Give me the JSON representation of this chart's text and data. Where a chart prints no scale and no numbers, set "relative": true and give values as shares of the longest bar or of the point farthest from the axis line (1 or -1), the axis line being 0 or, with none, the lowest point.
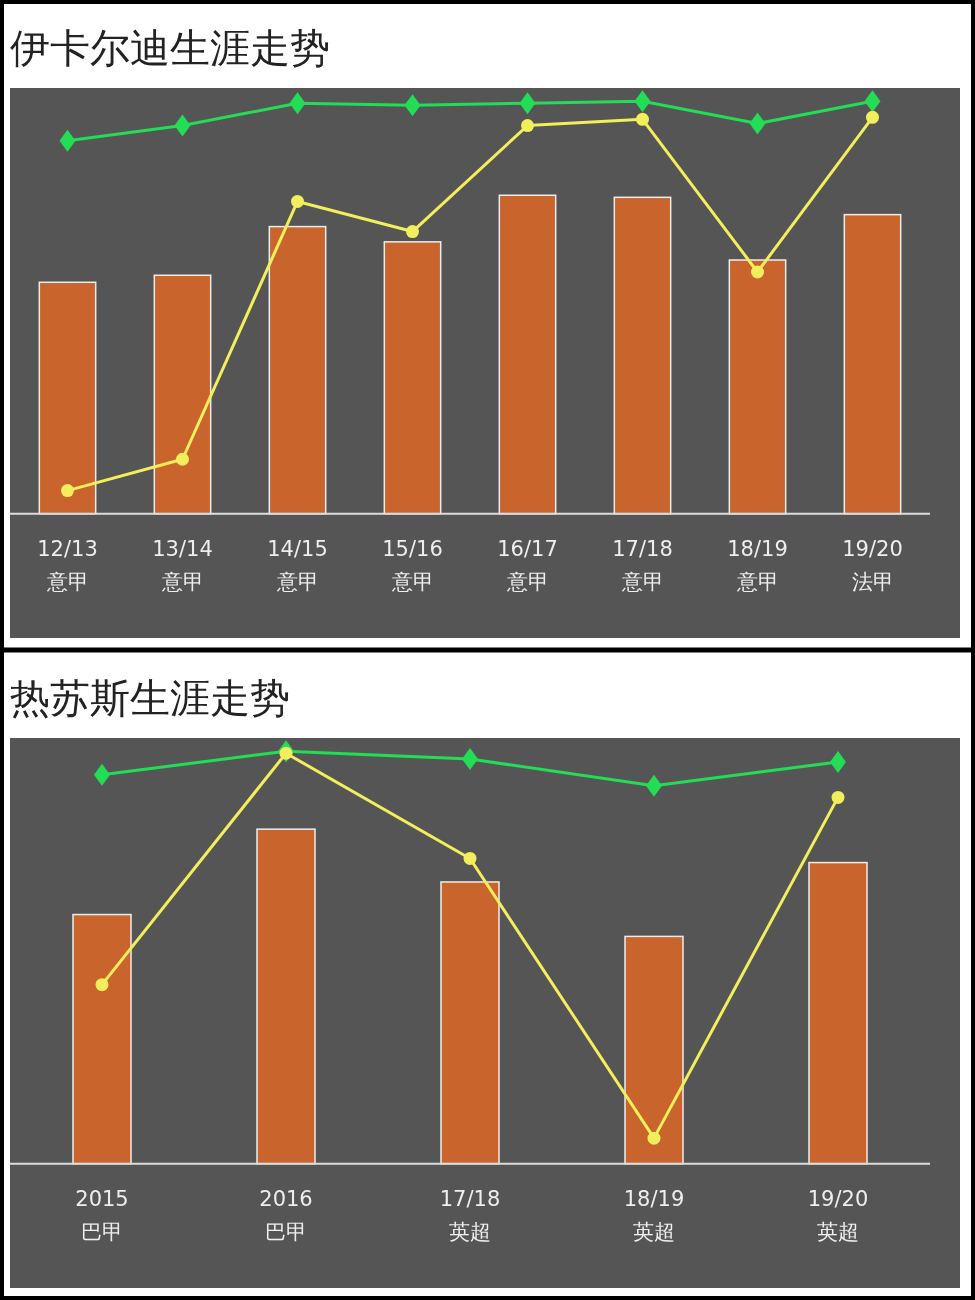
{
  "chart_data": [
    {
      "type": "bar",
      "title": "伊卡尔迪生涯走势",
      "relative": true,
      "categories": [
        "12/13\n意甲",
        "13/14\n意甲",
        "14/15\n意甲",
        "15/16\n意甲",
        "16/17\n意甲",
        "17/18\n意甲",
        "18/19\n意甲",
        "19/20\n法甲"
      ],
      "series": [
        {
          "color": "#c8642c",
          "values": [
            0.561,
            0.578,
            0.696,
            0.659,
            0.772,
            0.767,
            0.615,
            0.725
          ]
        },
        {
          "type": "line",
          "color": "#22dd55",
          "marker": "diamond",
          "values": [
            0.904,
            0.941,
            0.995,
            0.99,
            0.995,
            1,
            0.946,
            1
          ]
        },
        {
          "type": "line",
          "color": "#f2ee5c",
          "marker": "circle",
          "values": [
            0.056,
            0.132,
            0.757,
            0.684,
            0.941,
            0.956,
            0.586,
            0.961
          ]
        }
      ]
    },
    {
      "type": "bar",
      "title": "热苏斯生涯走势",
      "relative": true,
      "categories": [
        "2015\n巴甲",
        "2016\n巴甲",
        "17/18\n英超",
        "18/19\n英超",
        "19/20\n英超"
      ],
      "series": [
        {
          "color": "#c8642c",
          "values": [
            0.604,
            0.811,
            0.683,
            0.551,
            0.73
          ]
        },
        {
          "type": "line",
          "color": "#22dd55",
          "marker": "diamond",
          "values": [
            0.943,
            1,
            0.981,
            0.916,
            0.974
          ]
        },
        {
          "type": "line",
          "color": "#f2ee5c",
          "marker": "circle",
          "values": [
            0.434,
            0.995,
            0.74,
            0.062,
            0.888
          ]
        }
      ]
    }
  ]
}
